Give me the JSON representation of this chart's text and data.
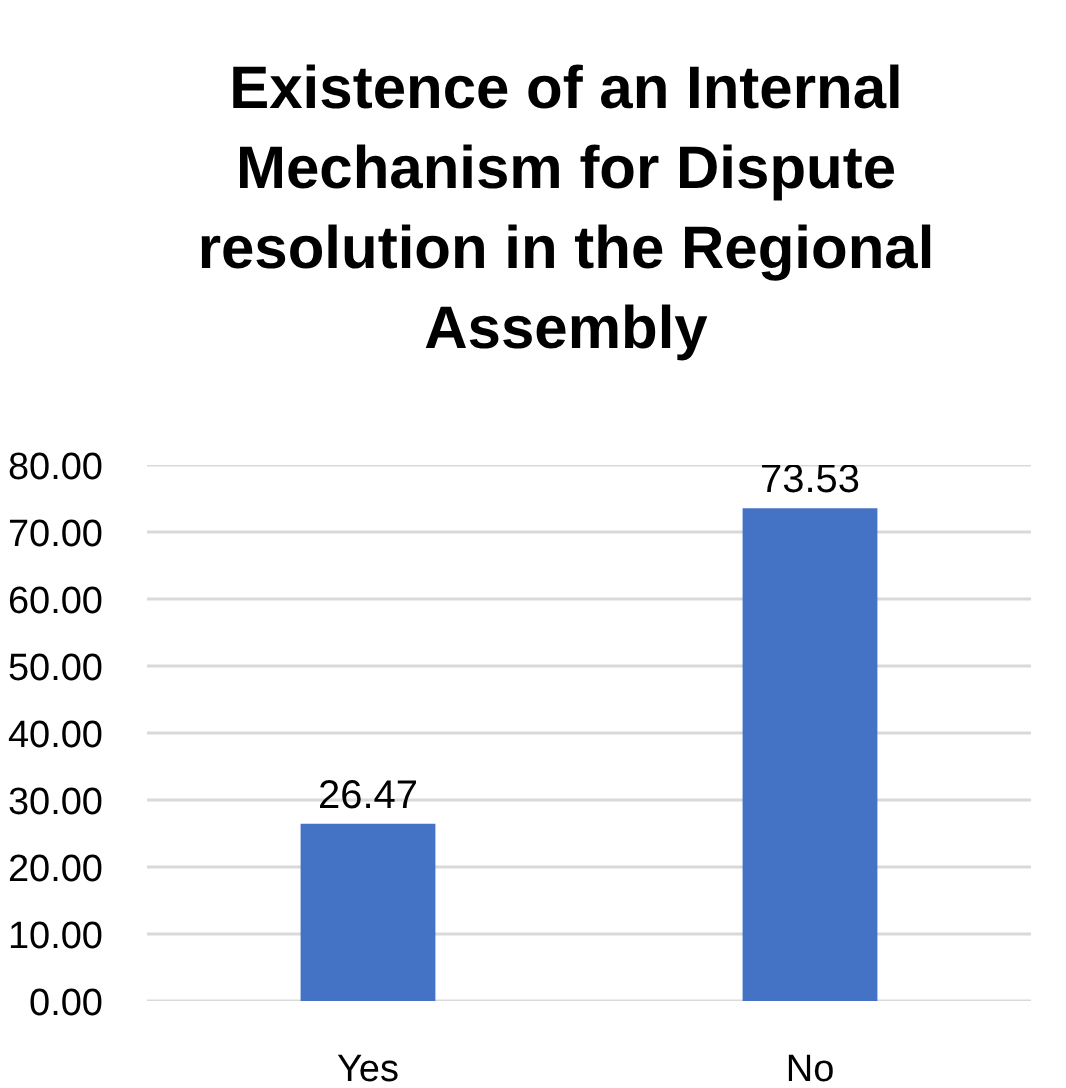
{
  "chart_data": {
    "type": "bar",
    "title": "Existence of an Internal Mechanism for Dispute resolution in the Regional Assembly",
    "categories": [
      "Yes",
      "No"
    ],
    "values": [
      26.47,
      73.53
    ],
    "color": "#4472c4",
    "ylim": [
      0,
      80
    ],
    "yticks": [
      {
        "value": 0,
        "label": "0.00"
      },
      {
        "value": 10,
        "label": "10.00"
      },
      {
        "value": 20,
        "label": "20.00"
      },
      {
        "value": 30,
        "label": "30.00"
      },
      {
        "value": 40,
        "label": "40.00"
      },
      {
        "value": 50,
        "label": "50.00"
      },
      {
        "value": 60,
        "label": "60.00"
      },
      {
        "value": 70,
        "label": "70.00"
      },
      {
        "value": 80,
        "label": "80.00"
      }
    ],
    "grid": "y",
    "data_labels": true
  }
}
